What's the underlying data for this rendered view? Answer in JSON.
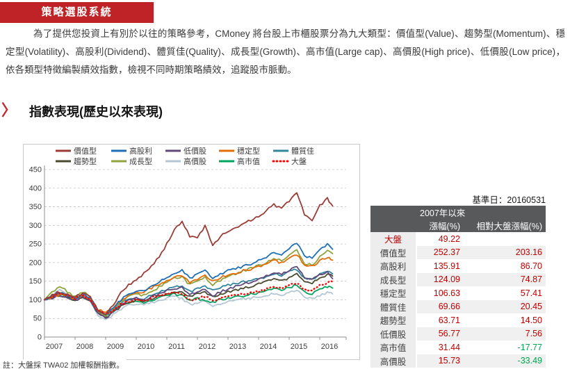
{
  "badge": {
    "label": "策略選股系統"
  },
  "intro_text": "為了提供您投資上有別於以往的策略參考，CMoney 將台股上市櫃股票分為九大類型：價值型(Value)、趨勢型(Momentum)、穩定型(Volatility)、高股利(Dividend)、體質佳(Quality)、成長型(Growth)、高市值(Large cap)、高價股(High price)、低價股(Low price)，依各類型特徵編製績效指數，檢視不同時期策略績效，追蹤股市脈動。",
  "section": {
    "chevron": "〉",
    "title": "指數表現(歷史以來表現)"
  },
  "footnote": "註：大盤採 TWA02 加權報酬指數。",
  "colors": {
    "accent_red": "#BF2327",
    "positive_value": "#C00000",
    "negative_value": "#00A650",
    "table_header_bg": "#58595B",
    "table_label_bg": "#EDEDED",
    "grid_line": "#c4c4c4"
  },
  "table": {
    "base_date": "基準日：20160531",
    "period_header": "2007年以來",
    "columns": [
      "漲幅(%)",
      "相對大盤漲幅(%)"
    ],
    "rows": [
      {
        "label": "大盤",
        "change": "49.22",
        "relative": "",
        "highlight": true
      },
      {
        "label": "價值型",
        "change": "252.37",
        "relative": "203.16"
      },
      {
        "label": "高股利",
        "change": "135.91",
        "relative": "86.70"
      },
      {
        "label": "成長型",
        "change": "124.09",
        "relative": "74.87"
      },
      {
        "label": "穩定型",
        "change": "106.63",
        "relative": "57.41"
      },
      {
        "label": "體質佳",
        "change": "69.66",
        "relative": "20.45"
      },
      {
        "label": "趨勢型",
        "change": "63.71",
        "relative": "14.50"
      },
      {
        "label": "低價股",
        "change": "56.77",
        "relative": "7.56"
      },
      {
        "label": "高市值",
        "change": "31.44",
        "relative": "-17.77"
      },
      {
        "label": "高價股",
        "change": "15.73",
        "relative": "-33.49"
      }
    ]
  },
  "chart_data": {
    "type": "line",
    "title": "",
    "xlabel": "",
    "ylabel": "",
    "ylim": [
      0,
      450
    ],
    "y_tick_step": 50,
    "x_ticks": [
      2007,
      2008,
      2009,
      2010,
      2011,
      2012,
      2013,
      2014,
      2015,
      2016
    ],
    "grid": "horizontal-dashed",
    "legend_position": "top",
    "base_value": 100,
    "x": [
      2007.0,
      2007.25,
      2007.5,
      2007.75,
      2008.0,
      2008.25,
      2008.5,
      2008.75,
      2009.0,
      2009.25,
      2009.5,
      2009.75,
      2010.0,
      2010.25,
      2010.5,
      2010.75,
      2011.0,
      2011.25,
      2011.5,
      2011.75,
      2012.0,
      2012.25,
      2012.5,
      2012.75,
      2013.0,
      2013.25,
      2013.5,
      2013.75,
      2014.0,
      2014.25,
      2014.5,
      2014.75,
      2015.0,
      2015.25,
      2015.5,
      2015.75,
      2016.0,
      2016.25,
      2016.42
    ],
    "series": [
      {
        "name": "價值型",
        "key": "value",
        "color": "#9B3B36",
        "line_style": "solid",
        "values": [
          100,
          112,
          122,
          115,
          108,
          118,
          108,
          72,
          62,
          85,
          118,
          140,
          155,
          170,
          190,
          215,
          250,
          290,
          310,
          270,
          265,
          300,
          245,
          270,
          285,
          295,
          305,
          315,
          325,
          340,
          355,
          345,
          365,
          388,
          330,
          312,
          352,
          372,
          352.4
        ]
      },
      {
        "name": "高股利",
        "key": "dividend",
        "color": "#1F6EB4",
        "line_style": "solid",
        "values": [
          100,
          110,
          118,
          112,
          104,
          115,
          104,
          72,
          60,
          78,
          100,
          115,
          122,
          125,
          135,
          148,
          160,
          172,
          178,
          158,
          168,
          178,
          160,
          170,
          178,
          184,
          190,
          196,
          205,
          215,
          228,
          220,
          238,
          252,
          218,
          214,
          234,
          248,
          235.9
        ]
      },
      {
        "name": "低價股",
        "key": "lowprice",
        "color": "#5F497A",
        "line_style": "solid",
        "values": [
          100,
          105,
          112,
          106,
          98,
          108,
          96,
          64,
          50,
          68,
          88,
          98,
          104,
          100,
          108,
          116,
          124,
          129,
          132,
          114,
          121,
          128,
          112,
          121,
          129,
          136,
          142,
          148,
          156,
          164,
          175,
          167,
          180,
          190,
          160,
          154,
          167,
          174,
          156.8
        ]
      },
      {
        "name": "穩定型",
        "key": "stable",
        "color": "#E36C0A",
        "line_style": "solid",
        "values": [
          100,
          108,
          115,
          110,
          104,
          112,
          102,
          74,
          64,
          80,
          98,
          112,
          120,
          122,
          132,
          142,
          152,
          162,
          166,
          148,
          156,
          166,
          150,
          160,
          168,
          172,
          178,
          183,
          189,
          197,
          206,
          199,
          212,
          222,
          194,
          191,
          204,
          215,
          206.6
        ]
      },
      {
        "name": "體質佳",
        "key": "quality",
        "color": "#31859C",
        "line_style": "solid",
        "values": [
          100,
          109,
          116,
          110,
          103,
          112,
          100,
          70,
          58,
          74,
          90,
          100,
          106,
          104,
          112,
          120,
          128,
          135,
          138,
          122,
          130,
          138,
          124,
          132,
          140,
          144,
          148,
          152,
          156,
          162,
          170,
          164,
          175,
          183,
          158,
          155,
          169,
          178,
          169.7
        ]
      },
      {
        "name": "趨勢型",
        "key": "momentum",
        "color": "#4A4A30",
        "line_style": "solid",
        "values": [
          100,
          106,
          112,
          106,
          100,
          108,
          96,
          66,
          52,
          66,
          82,
          92,
          98,
          95,
          102,
          110,
          116,
          121,
          124,
          108,
          115,
          121,
          108,
          115,
          122,
          126,
          131,
          136,
          142,
          148,
          156,
          150,
          160,
          170,
          148,
          145,
          157,
          167,
          163.7
        ]
      },
      {
        "name": "成長型",
        "key": "growth",
        "color": "#8FA33C",
        "line_style": "solid",
        "values": [
          100,
          120,
          138,
          122,
          108,
          122,
          108,
          70,
          55,
          75,
          95,
          108,
          115,
          112,
          122,
          135,
          148,
          158,
          162,
          140,
          150,
          160,
          140,
          152,
          162,
          170,
          178,
          185,
          192,
          200,
          212,
          204,
          220,
          235,
          198,
          194,
          214,
          230,
          224.1
        ]
      },
      {
        "name": "高價股",
        "key": "highprice",
        "color": "#B5C7D3",
        "line_style": "solid",
        "values": [
          100,
          112,
          125,
          112,
          100,
          112,
          95,
          60,
          45,
          60,
          75,
          85,
          90,
          86,
          92,
          98,
          104,
          108,
          104,
          87,
          92,
          96,
          84,
          90,
          95,
          98,
          102,
          105,
          108,
          112,
          118,
          113,
          120,
          126,
          107,
          103,
          111,
          119,
          115.7
        ]
      },
      {
        "name": "高市值",
        "key": "largecap",
        "color": "#00A45F",
        "line_style": "solid",
        "values": [
          100,
          107,
          114,
          108,
          102,
          109,
          98,
          68,
          58,
          70,
          84,
          92,
          96,
          93,
          99,
          106,
          112,
          115,
          112,
          97,
          103,
          99,
          94,
          100,
          105,
          108,
          111,
          115,
          118,
          123,
          130,
          126,
          133,
          140,
          121,
          117,
          129,
          136,
          131.4
        ]
      },
      {
        "name": "大盤",
        "key": "market",
        "color": "#FE0000",
        "line_style": "dotted",
        "values": [
          100,
          108,
          117,
          111,
          104,
          112,
          100,
          70,
          61,
          72,
          88,
          95,
          100,
          97,
          104,
          112,
          118,
          121,
          116,
          99,
          105,
          109,
          97,
          104,
          110,
          112,
          115,
          120,
          122,
          128,
          135,
          131,
          138,
          145,
          127,
          124,
          139,
          146,
          149.2
        ]
      }
    ]
  }
}
